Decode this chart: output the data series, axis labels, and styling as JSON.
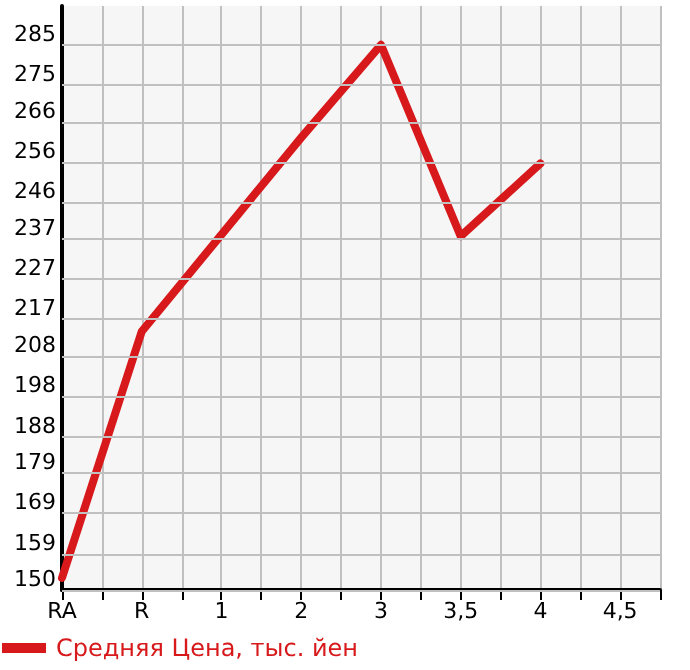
{
  "chart_data": {
    "type": "line",
    "categories": [
      "RA",
      "R",
      "1",
      "2",
      "3",
      "3,5",
      "4",
      "4,5"
    ],
    "series": [
      {
        "name": "Средняя Цена, тыс. йен",
        "color": "#d7191c",
        "values": [
          153,
          214,
          238,
          262,
          285,
          237.6,
          255.6,
          null
        ]
      }
    ],
    "ylim": [
      150,
      294.6
    ],
    "yticks": [
      150,
      159,
      169,
      179,
      188,
      198,
      208,
      217,
      227,
      237,
      246,
      256,
      266,
      275,
      285
    ],
    "grid": true,
    "legend": "bottom left",
    "marker": "none",
    "line_style": "solid"
  }
}
